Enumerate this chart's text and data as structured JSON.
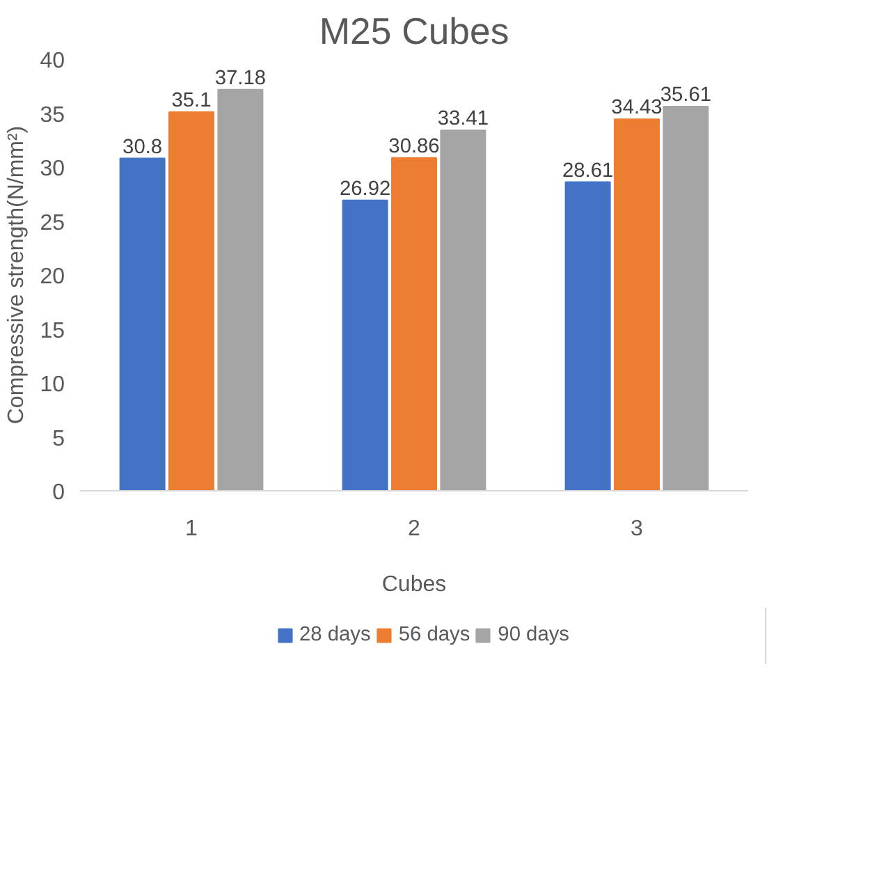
{
  "chart_data": {
    "type": "bar",
    "title": "M25 Cubes",
    "xlabel": "Cubes",
    "ylabel": "Compressive strength(N/mm²)",
    "categories": [
      "1",
      "2",
      "3"
    ],
    "series": [
      {
        "name": "28 days",
        "color": "#4472c4",
        "values": [
          30.8,
          26.92,
          28.61
        ]
      },
      {
        "name": "56 days",
        "color": "#ed7d31",
        "values": [
          35.1,
          30.86,
          34.43
        ]
      },
      {
        "name": "90 days",
        "color": "#a5a5a5",
        "values": [
          37.18,
          33.41,
          35.61
        ]
      }
    ],
    "ylim": [
      0,
      40
    ],
    "yticks": [
      0,
      5,
      10,
      15,
      20,
      25,
      30,
      35,
      40
    ],
    "grid": false,
    "legend": "bottom",
    "data_labels": true
  }
}
